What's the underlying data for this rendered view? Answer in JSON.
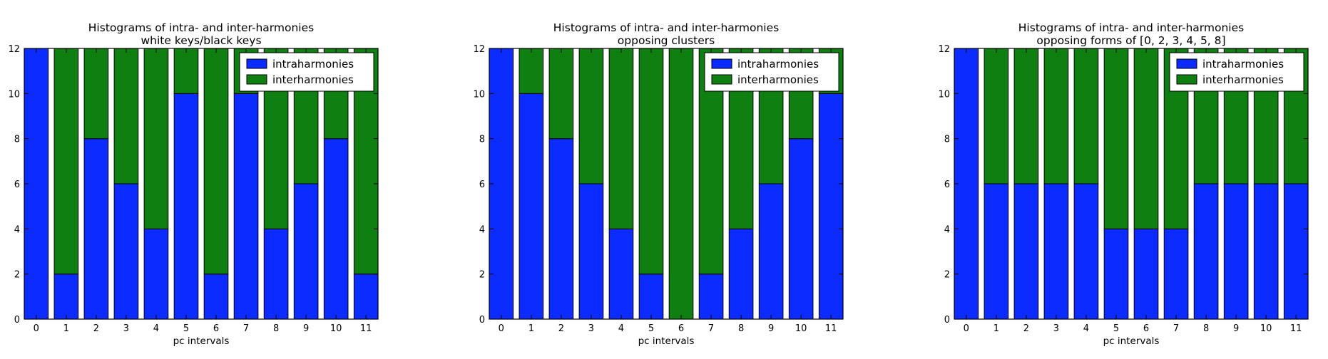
{
  "chart_data": [
    {
      "type": "bar",
      "stacked": true,
      "title": "Histograms of intra- and inter-harmonies",
      "subtitle": "white keys/black keys",
      "xlabel": "pc intervals",
      "ylabel": "",
      "ylim": [
        0,
        12
      ],
      "yticks": [
        0,
        2,
        4,
        6,
        8,
        10,
        12
      ],
      "categories": [
        "0",
        "1",
        "2",
        "3",
        "4",
        "5",
        "6",
        "7",
        "8",
        "9",
        "10",
        "11"
      ],
      "series": [
        {
          "name": "intraharmonies",
          "color": "#0b2bff",
          "values": [
            12,
            2,
            8,
            6,
            4,
            10,
            2,
            10,
            4,
            6,
            8,
            2
          ]
        },
        {
          "name": "interharmonies",
          "color": "#0f7f12",
          "values": [
            0,
            10,
            4,
            6,
            8,
            2,
            10,
            2,
            8,
            6,
            4,
            10
          ]
        }
      ],
      "legend": "top-right"
    },
    {
      "type": "bar",
      "stacked": true,
      "title": "Histograms of intra- and inter-harmonies",
      "subtitle": "opposing clusters",
      "xlabel": "pc intervals",
      "ylabel": "",
      "ylim": [
        0,
        12
      ],
      "yticks": [
        0,
        2,
        4,
        6,
        8,
        10,
        12
      ],
      "categories": [
        "0",
        "1",
        "2",
        "3",
        "4",
        "5",
        "6",
        "7",
        "8",
        "9",
        "10",
        "11"
      ],
      "series": [
        {
          "name": "intraharmonies",
          "color": "#0b2bff",
          "values": [
            12,
            10,
            8,
            6,
            4,
            2,
            0,
            2,
            4,
            6,
            8,
            10
          ]
        },
        {
          "name": "interharmonies",
          "color": "#0f7f12",
          "values": [
            0,
            2,
            4,
            6,
            8,
            10,
            12,
            10,
            8,
            6,
            4,
            2
          ]
        }
      ],
      "legend": "top-right"
    },
    {
      "type": "bar",
      "stacked": true,
      "title": "Histograms of intra- and inter-harmonies",
      "subtitle": "opposing forms of [0, 2, 3, 4, 5, 8]",
      "xlabel": "pc intervals",
      "ylabel": "",
      "ylim": [
        0,
        12
      ],
      "yticks": [
        0,
        2,
        4,
        6,
        8,
        10,
        12
      ],
      "categories": [
        "0",
        "1",
        "2",
        "3",
        "4",
        "5",
        "6",
        "7",
        "8",
        "9",
        "10",
        "11"
      ],
      "series": [
        {
          "name": "intraharmonies",
          "color": "#0b2bff",
          "values": [
            12,
            6,
            6,
            6,
            6,
            4,
            4,
            4,
            6,
            6,
            6,
            6
          ]
        },
        {
          "name": "interharmonies",
          "color": "#0f7f12",
          "values": [
            0,
            6,
            6,
            6,
            6,
            8,
            8,
            8,
            6,
            6,
            6,
            6
          ]
        }
      ],
      "legend": "top-right"
    }
  ]
}
